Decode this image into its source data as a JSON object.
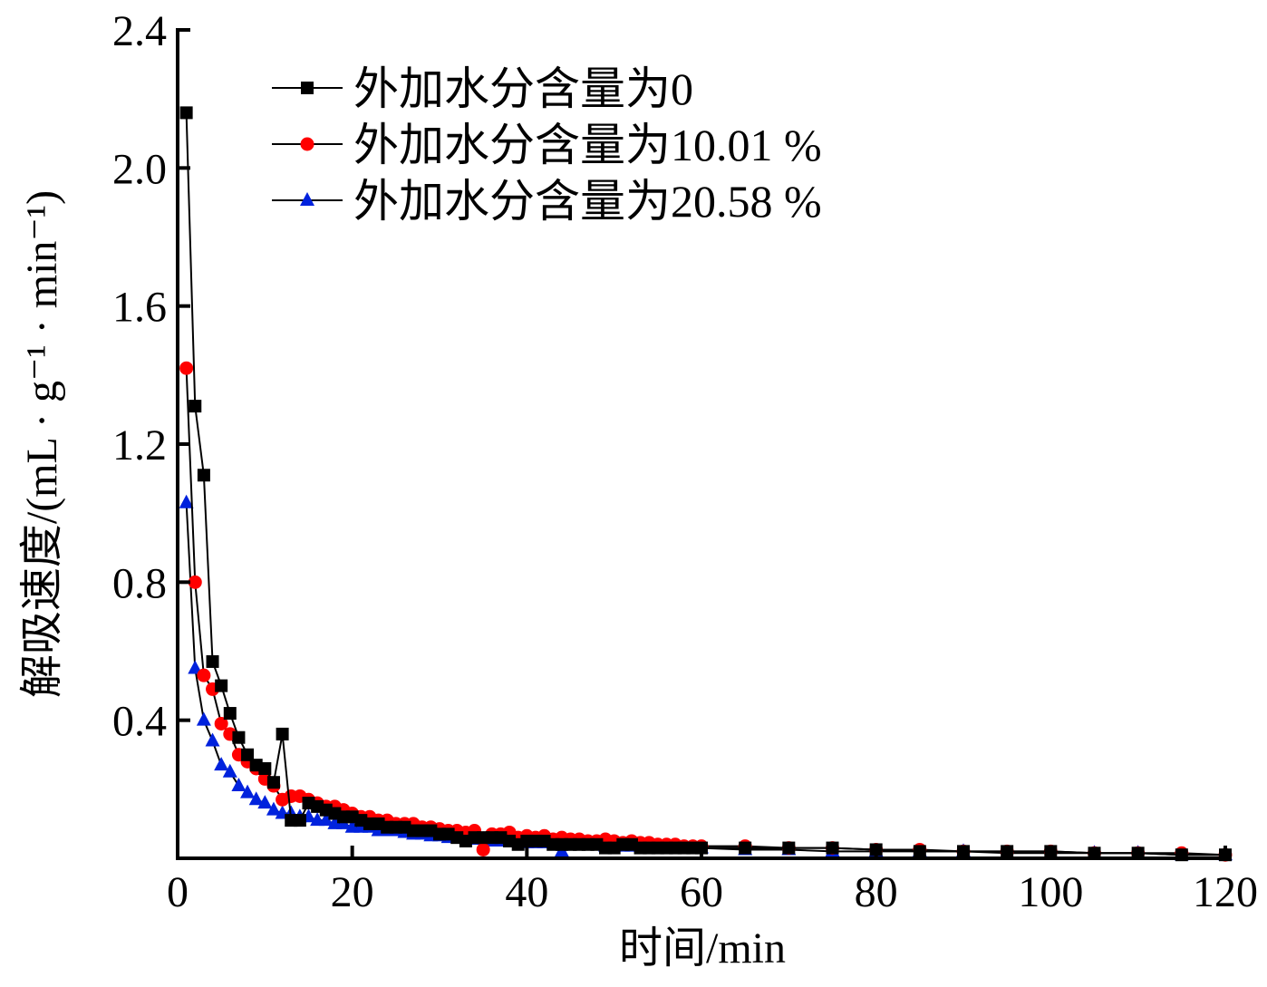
{
  "chart_data": {
    "type": "line",
    "title": "",
    "xlabel": "时间/min",
    "ylabel": "解吸速度/(mL · g⁻¹ · min⁻¹)",
    "xlim": [
      0,
      120
    ],
    "ylim": [
      0,
      2.4
    ],
    "xticks": [
      0,
      20,
      40,
      60,
      80,
      100,
      120
    ],
    "xtick_labels": [
      "0",
      "20",
      "40",
      "60",
      "80",
      "100",
      "120"
    ],
    "yticks": [
      0.4,
      0.8,
      1.2,
      1.6,
      2.0,
      2.4
    ],
    "ytick_labels": [
      "0.4",
      "0.8",
      "1.2",
      "1.6",
      "2.0",
      "2.4"
    ],
    "grid": false,
    "legend_position": "top-left",
    "x": [
      1,
      2,
      3,
      4,
      5,
      6,
      7,
      8,
      9,
      10,
      11,
      12,
      13,
      14,
      15,
      16,
      17,
      18,
      19,
      20,
      21,
      22,
      23,
      24,
      25,
      26,
      27,
      28,
      29,
      30,
      31,
      32,
      33,
      34,
      35,
      36,
      37,
      38,
      39,
      40,
      41,
      42,
      43,
      44,
      45,
      46,
      47,
      48,
      49,
      50,
      51,
      52,
      53,
      54,
      55,
      56,
      57,
      58,
      59,
      60,
      65,
      70,
      75,
      80,
      85,
      90,
      95,
      100,
      105,
      110,
      115,
      120
    ],
    "series": [
      {
        "name": "外加水分含量为0",
        "color": "#000000",
        "marker": "square",
        "values": [
          2.16,
          1.31,
          1.11,
          0.57,
          0.5,
          0.42,
          0.35,
          0.3,
          0.27,
          0.26,
          0.22,
          0.36,
          0.11,
          0.11,
          0.16,
          0.15,
          0.14,
          0.13,
          0.12,
          0.12,
          0.11,
          0.1,
          0.1,
          0.09,
          0.09,
          0.09,
          0.08,
          0.08,
          0.08,
          0.07,
          0.07,
          0.06,
          0.05,
          0.06,
          0.06,
          0.06,
          0.06,
          0.05,
          0.04,
          0.05,
          0.05,
          0.05,
          0.04,
          0.04,
          0.04,
          0.04,
          0.04,
          0.04,
          0.03,
          0.03,
          0.04,
          0.04,
          0.03,
          0.03,
          0.03,
          0.03,
          0.03,
          0.03,
          0.03,
          0.03,
          0.03,
          0.03,
          0.03,
          0.025,
          0.02,
          0.02,
          0.02,
          0.02,
          0.015,
          0.015,
          0.01,
          0.01
        ]
      },
      {
        "name": "外加水分含量为10.01 %",
        "color": "#ff0000",
        "marker": "circle",
        "values": [
          1.42,
          0.8,
          0.53,
          0.49,
          0.39,
          0.36,
          0.3,
          0.28,
          0.26,
          0.23,
          0.21,
          0.17,
          0.18,
          0.18,
          0.17,
          0.16,
          0.15,
          0.15,
          0.14,
          0.13,
          0.12,
          0.12,
          0.11,
          0.11,
          0.1,
          0.1,
          0.1,
          0.09,
          0.09,
          0.085,
          0.08,
          0.08,
          0.075,
          0.08,
          0.025,
          0.07,
          0.07,
          0.075,
          0.06,
          0.065,
          0.06,
          0.065,
          0.055,
          0.06,
          0.055,
          0.055,
          0.05,
          0.05,
          0.055,
          0.05,
          0.045,
          0.05,
          0.045,
          0.045,
          0.04,
          0.04,
          0.04,
          0.035,
          0.035,
          0.035,
          0.035,
          0.03,
          0.03,
          0.025,
          0.025,
          0.02,
          0.02,
          0.02,
          0.015,
          0.015,
          0.015,
          0.01
        ]
      },
      {
        "name": "外加水分含量为20.58 %",
        "color": "#0022dd",
        "marker": "triangle",
        "values": [
          1.03,
          0.55,
          0.4,
          0.34,
          0.27,
          0.25,
          0.21,
          0.19,
          0.17,
          0.16,
          0.14,
          0.13,
          0.13,
          0.12,
          0.12,
          0.11,
          0.11,
          0.1,
          0.1,
          0.09,
          0.09,
          0.09,
          0.08,
          0.08,
          0.08,
          0.075,
          0.07,
          0.07,
          0.065,
          0.065,
          0.06,
          0.06,
          0.06,
          0.055,
          0.055,
          0.05,
          0.05,
          0.05,
          0.05,
          0.045,
          0.045,
          0.045,
          0.045,
          0.02,
          0.04,
          0.04,
          0.04,
          0.04,
          0.035,
          0.035,
          0.035,
          0.035,
          0.035,
          0.035,
          0.03,
          0.03,
          0.03,
          0.03,
          0.03,
          0.03,
          0.025,
          0.025,
          0.02,
          0.02,
          0.02,
          0.02,
          0.015,
          0.015,
          0.015,
          0.015,
          0.01,
          0.01
        ]
      }
    ]
  }
}
